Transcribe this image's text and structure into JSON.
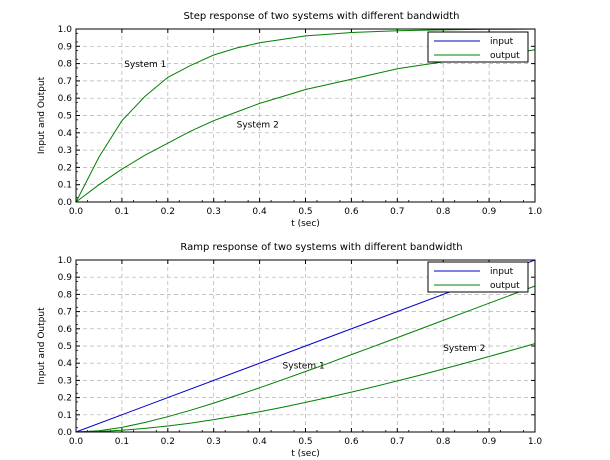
{
  "chart_data": [
    {
      "type": "line",
      "title": "Step response of two systems with different bandwidth",
      "xlabel": "t (sec)",
      "ylabel": "Input and Output",
      "xlim": [
        0,
        1
      ],
      "ylim": [
        0,
        1
      ],
      "xticks": [
        "0.0",
        "0.1",
        "0.2",
        "0.3",
        "0.4",
        "0.5",
        "0.6",
        "0.7",
        "0.8",
        "0.9",
        "1.0"
      ],
      "yticks": [
        "0.0",
        "0.1",
        "0.2",
        "0.3",
        "0.4",
        "0.5",
        "0.6",
        "0.7",
        "0.8",
        "0.9",
        "1.0"
      ],
      "grid": true,
      "legend_position": "top-right",
      "legend": [
        {
          "label": "input",
          "color": "#0000cc"
        },
        {
          "label": "output",
          "color": "#008000"
        }
      ],
      "series": [
        {
          "color": "#0000cc",
          "x": [
            0,
            1
          ],
          "y": [
            1,
            1
          ]
        },
        {
          "color": "#008000",
          "x": [
            0,
            0.05,
            0.1,
            0.15,
            0.2,
            0.25,
            0.3,
            0.35,
            0.4,
            0.45,
            0.5,
            0.55,
            0.6,
            0.65,
            0.7,
            0.75,
            0.8,
            0.85,
            0.9,
            0.95,
            1.0
          ],
          "y": [
            0,
            0.26,
            0.47,
            0.61,
            0.72,
            0.79,
            0.85,
            0.89,
            0.92,
            0.94,
            0.96,
            0.97,
            0.98,
            0.985,
            0.99,
            0.993,
            0.995,
            0.997,
            0.998,
            0.999,
            1.0
          ]
        },
        {
          "color": "#008000",
          "x": [
            0,
            0.05,
            0.1,
            0.15,
            0.2,
            0.25,
            0.3,
            0.35,
            0.4,
            0.45,
            0.5,
            0.55,
            0.6,
            0.65,
            0.7,
            0.75,
            0.8,
            0.85,
            0.9,
            0.95,
            1.0
          ],
          "y": [
            0,
            0.1,
            0.19,
            0.27,
            0.34,
            0.41,
            0.47,
            0.52,
            0.57,
            0.61,
            0.65,
            0.68,
            0.71,
            0.74,
            0.77,
            0.79,
            0.81,
            0.83,
            0.85,
            0.86,
            0.88
          ]
        }
      ],
      "annotations": [
        {
          "text": "System 1",
          "x": 0.105,
          "y": 0.78
        },
        {
          "text": "System 2",
          "x": 0.35,
          "y": 0.43
        }
      ]
    },
    {
      "type": "line",
      "title": "Ramp response of two systems with different bandwidth",
      "xlabel": "t (sec)",
      "ylabel": "Input and Output",
      "xlim": [
        0,
        1
      ],
      "ylim": [
        0,
        1
      ],
      "xticks": [
        "0.0",
        "0.1",
        "0.2",
        "0.3",
        "0.4",
        "0.5",
        "0.6",
        "0.7",
        "0.8",
        "0.9",
        "1.0"
      ],
      "yticks": [
        "0.0",
        "0.1",
        "0.2",
        "0.3",
        "0.4",
        "0.5",
        "0.6",
        "0.7",
        "0.8",
        "0.9",
        "1.0"
      ],
      "grid": true,
      "legend_position": "top-right",
      "legend": [
        {
          "label": "input",
          "color": "#0000cc"
        },
        {
          "label": "output",
          "color": "#008000"
        }
      ],
      "series": [
        {
          "color": "#0000cc",
          "x": [
            0,
            1
          ],
          "y": [
            0,
            1
          ]
        },
        {
          "color": "#008000",
          "x": [
            0,
            0.05,
            0.1,
            0.15,
            0.2,
            0.25,
            0.3,
            0.35,
            0.4,
            0.45,
            0.5,
            0.55,
            0.6,
            0.65,
            0.7,
            0.75,
            0.8,
            0.85,
            0.9,
            0.95,
            1.0
          ],
          "y": [
            0,
            0.007,
            0.027,
            0.055,
            0.089,
            0.127,
            0.168,
            0.212,
            0.257,
            0.304,
            0.352,
            0.4,
            0.45,
            0.499,
            0.549,
            0.599,
            0.649,
            0.699,
            0.749,
            0.799,
            0.849
          ]
        },
        {
          "color": "#008000",
          "x": [
            0,
            0.05,
            0.1,
            0.15,
            0.2,
            0.25,
            0.3,
            0.35,
            0.4,
            0.45,
            0.5,
            0.55,
            0.6,
            0.65,
            0.7,
            0.75,
            0.8,
            0.85,
            0.9,
            0.95,
            1.0
          ],
          "y": [
            0,
            0.003,
            0.01,
            0.021,
            0.035,
            0.052,
            0.072,
            0.094,
            0.118,
            0.144,
            0.172,
            0.201,
            0.232,
            0.264,
            0.297,
            0.331,
            0.366,
            0.402,
            0.439,
            0.476,
            0.514
          ]
        }
      ],
      "annotations": [
        {
          "text": "System 1",
          "x": 0.45,
          "y": 0.37
        },
        {
          "text": "System 2",
          "x": 0.8,
          "y": 0.47
        }
      ]
    }
  ]
}
